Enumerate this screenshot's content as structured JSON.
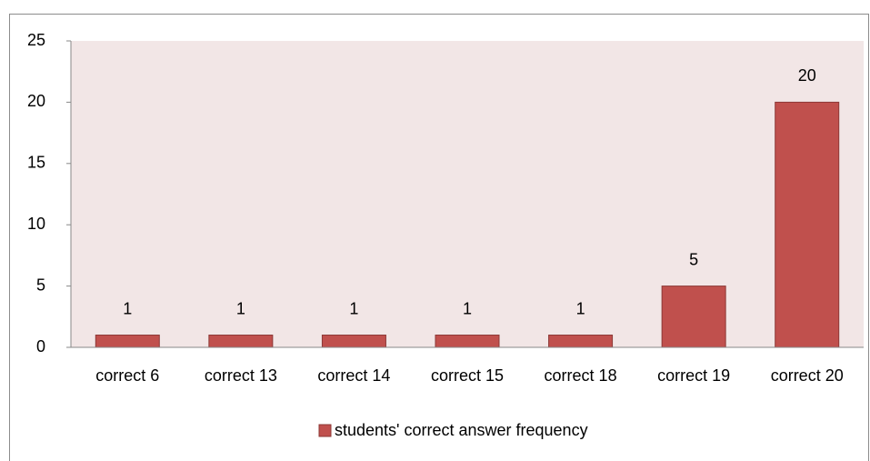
{
  "chart_data": {
    "type": "bar",
    "categories": [
      "correct 6",
      "correct 13",
      "correct 14",
      "correct 15",
      "correct 18",
      "correct 19",
      "correct 20"
    ],
    "series": [
      {
        "name": "students' correct answer frequency",
        "color": "#c0504d",
        "values": [
          1,
          1,
          1,
          1,
          1,
          5,
          20
        ]
      }
    ],
    "ylim": [
      0,
      25
    ],
    "yticks": [
      0,
      5,
      10,
      15,
      20,
      25
    ],
    "grid": false,
    "legend": "bottom",
    "plot_background": "#f2e6e6"
  }
}
